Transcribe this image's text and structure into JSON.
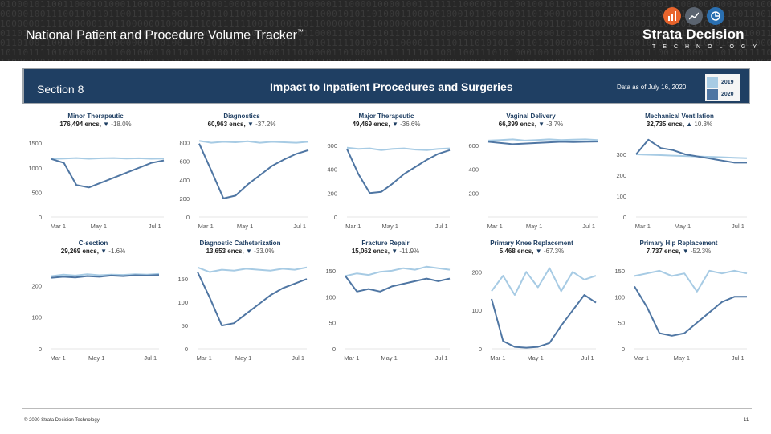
{
  "banner": {
    "title": "National Patient and Procedure Volume Tracker",
    "trademark": "™",
    "brand_name": "Strata Decision",
    "brand_sub": "TECHNOLOGY",
    "logo_icons": [
      "bar-chart-icon",
      "line-chart-icon",
      "pie-chart-icon"
    ]
  },
  "dashboard": {
    "section": "Section 8",
    "title": "Impact to Inpatient Procedures and Surgeries",
    "data_date": "Data as of July 16, 2020",
    "legend": [
      {
        "label": "2019",
        "color": "#a7cbe4"
      },
      {
        "label": "2020",
        "color": "#4f76a3"
      }
    ]
  },
  "colors": {
    "series_2019": "#a7cbe4",
    "series_2020": "#4f76a3",
    "header_bg": "#1f3f63",
    "up_arrow": "#1f3f63"
  },
  "chart_data": [
    {
      "type": "line",
      "title": "Minor Therapeutic",
      "encounters": "176,494 encs,",
      "change_symbol": "▼",
      "change": "-18.0%",
      "yticks": [
        "1500",
        "1000",
        "500",
        "0"
      ],
      "xticks": [
        "Mar 1",
        "May 1",
        "Jul 1"
      ],
      "series": [
        {
          "name": "2019",
          "values": [
            1180,
            1190,
            1200,
            1185,
            1195,
            1200,
            1190,
            1195,
            1185,
            1190
          ]
        },
        {
          "name": "2020",
          "values": [
            1180,
            1100,
            650,
            600,
            700,
            800,
            900,
            1000,
            1100,
            1150
          ]
        }
      ]
    },
    {
      "type": "line",
      "title": "Diagnostics",
      "encounters": "60,963 encs,",
      "change_symbol": "▼",
      "change": "-37.2%",
      "yticks": [
        "800",
        "600",
        "400",
        "200",
        "0"
      ],
      "xticks": [
        "Mar 1",
        "May 1",
        "Jul 1"
      ],
      "series": [
        {
          "name": "2019",
          "values": [
            820,
            800,
            810,
            805,
            815,
            800,
            810,
            805,
            800,
            810
          ]
        },
        {
          "name": "2020",
          "values": [
            790,
            500,
            200,
            230,
            350,
            450,
            550,
            620,
            680,
            720
          ]
        }
      ]
    },
    {
      "type": "line",
      "title": "Major Therapeutic",
      "encounters": "49,469 encs,",
      "change_symbol": "▼",
      "change": "-36.6%",
      "yticks": [
        "600",
        "400",
        "200",
        "0"
      ],
      "xticks": [
        "Mar 1",
        "May 1",
        "Jul 1"
      ],
      "series": [
        {
          "name": "2019",
          "values": [
            580,
            570,
            575,
            560,
            570,
            575,
            565,
            560,
            570,
            575
          ]
        },
        {
          "name": "2020",
          "values": [
            570,
            360,
            200,
            210,
            280,
            360,
            420,
            480,
            530,
            560
          ]
        }
      ]
    },
    {
      "type": "line",
      "title": "Vaginal Delivery",
      "encounters": "66,399 encs,",
      "change_symbol": "▼",
      "change": "-3.7%",
      "yticks": [
        "600",
        "400",
        "200"
      ],
      "xticks": [
        "Mar 1",
        "May 1",
        "Jul 1"
      ],
      "series": [
        {
          "name": "2019",
          "values": [
            640,
            645,
            650,
            640,
            645,
            650,
            645,
            648,
            650,
            645
          ]
        },
        {
          "name": "2020",
          "values": [
            630,
            620,
            610,
            615,
            620,
            625,
            630,
            628,
            630,
            632
          ]
        }
      ]
    },
    {
      "type": "line",
      "title": "Mechanical Ventilation",
      "encounters": "32,735 encs,",
      "change_symbol": "▲",
      "change": "10.3%",
      "yticks": [
        "300",
        "200",
        "100",
        "0"
      ],
      "xticks": [
        "Mar 1",
        "May 1",
        "Jul 1"
      ],
      "series": [
        {
          "name": "2019",
          "values": [
            300,
            298,
            296,
            294,
            292,
            290,
            288,
            286,
            284,
            282
          ]
        },
        {
          "name": "2020",
          "values": [
            300,
            370,
            330,
            320,
            300,
            290,
            280,
            270,
            260,
            260
          ]
        }
      ]
    },
    {
      "type": "line",
      "title": "C-section",
      "encounters": "29,269 encs,",
      "change_symbol": "▼",
      "change": "-1.6%",
      "yticks": [
        "200",
        "100",
        "0"
      ],
      "xticks": [
        "Mar 1",
        "May 1",
        "Jul 1"
      ],
      "series": [
        {
          "name": "2019",
          "values": [
            230,
            235,
            232,
            236,
            233,
            235,
            234,
            236,
            235,
            237
          ]
        },
        {
          "name": "2020",
          "values": [
            225,
            228,
            226,
            230,
            228,
            232,
            230,
            233,
            232,
            234
          ]
        }
      ]
    },
    {
      "type": "line",
      "title": "Diagnostic Catheterization",
      "encounters": "13,653 encs,",
      "change_symbol": "▼",
      "change": "-33.0%",
      "yticks": [
        "150",
        "100",
        "50",
        "0"
      ],
      "xticks": [
        "Mar 1",
        "May 1",
        "Jul 1"
      ],
      "series": [
        {
          "name": "2019",
          "values": [
            175,
            165,
            170,
            168,
            172,
            170,
            168,
            172,
            170,
            175
          ]
        },
        {
          "name": "2020",
          "values": [
            165,
            110,
            50,
            55,
            75,
            95,
            115,
            130,
            140,
            150
          ]
        }
      ]
    },
    {
      "type": "line",
      "title": "Fracture Repair",
      "encounters": "15,062 encs,",
      "change_symbol": "▼",
      "change": "-11.9%",
      "yticks": [
        "150",
        "100",
        "50",
        "0"
      ],
      "xticks": [
        "Mar 1",
        "May 1",
        "Jul 1"
      ],
      "series": [
        {
          "name": "2019",
          "values": [
            140,
            145,
            142,
            148,
            150,
            155,
            152,
            158,
            155,
            152
          ]
        },
        {
          "name": "2020",
          "values": [
            140,
            110,
            115,
            110,
            120,
            125,
            130,
            135,
            130,
            135
          ]
        }
      ]
    },
    {
      "type": "line",
      "title": "Primary Knee Replacement",
      "encounters": "5,468 encs,",
      "change_symbol": "▼",
      "change": "-67.3%",
      "yticks": [
        "200",
        "100",
        "0"
      ],
      "xticks": [
        "Mar 1",
        "May 1",
        "Jul 1"
      ],
      "series": [
        {
          "name": "2019",
          "values": [
            150,
            190,
            140,
            200,
            160,
            210,
            150,
            200,
            180,
            190
          ]
        },
        {
          "name": "2020",
          "values": [
            130,
            20,
            5,
            3,
            5,
            15,
            60,
            100,
            140,
            120
          ]
        }
      ]
    },
    {
      "type": "line",
      "title": "Primary Hip Replacement",
      "encounters": "7,737 encs,",
      "change_symbol": "▼",
      "change": "-52.3%",
      "yticks": [
        "150",
        "100",
        "50",
        "0"
      ],
      "xticks": [
        "Mar 1",
        "May 1",
        "Jul 1"
      ],
      "series": [
        {
          "name": "2019",
          "values": [
            140,
            145,
            150,
            140,
            145,
            110,
            150,
            145,
            150,
            145
          ]
        },
        {
          "name": "2020",
          "values": [
            120,
            80,
            30,
            25,
            30,
            50,
            70,
            90,
            100,
            100
          ]
        }
      ]
    }
  ],
  "footer": {
    "copyright": "© 2020 Strata Decision Technology",
    "page": "11"
  }
}
